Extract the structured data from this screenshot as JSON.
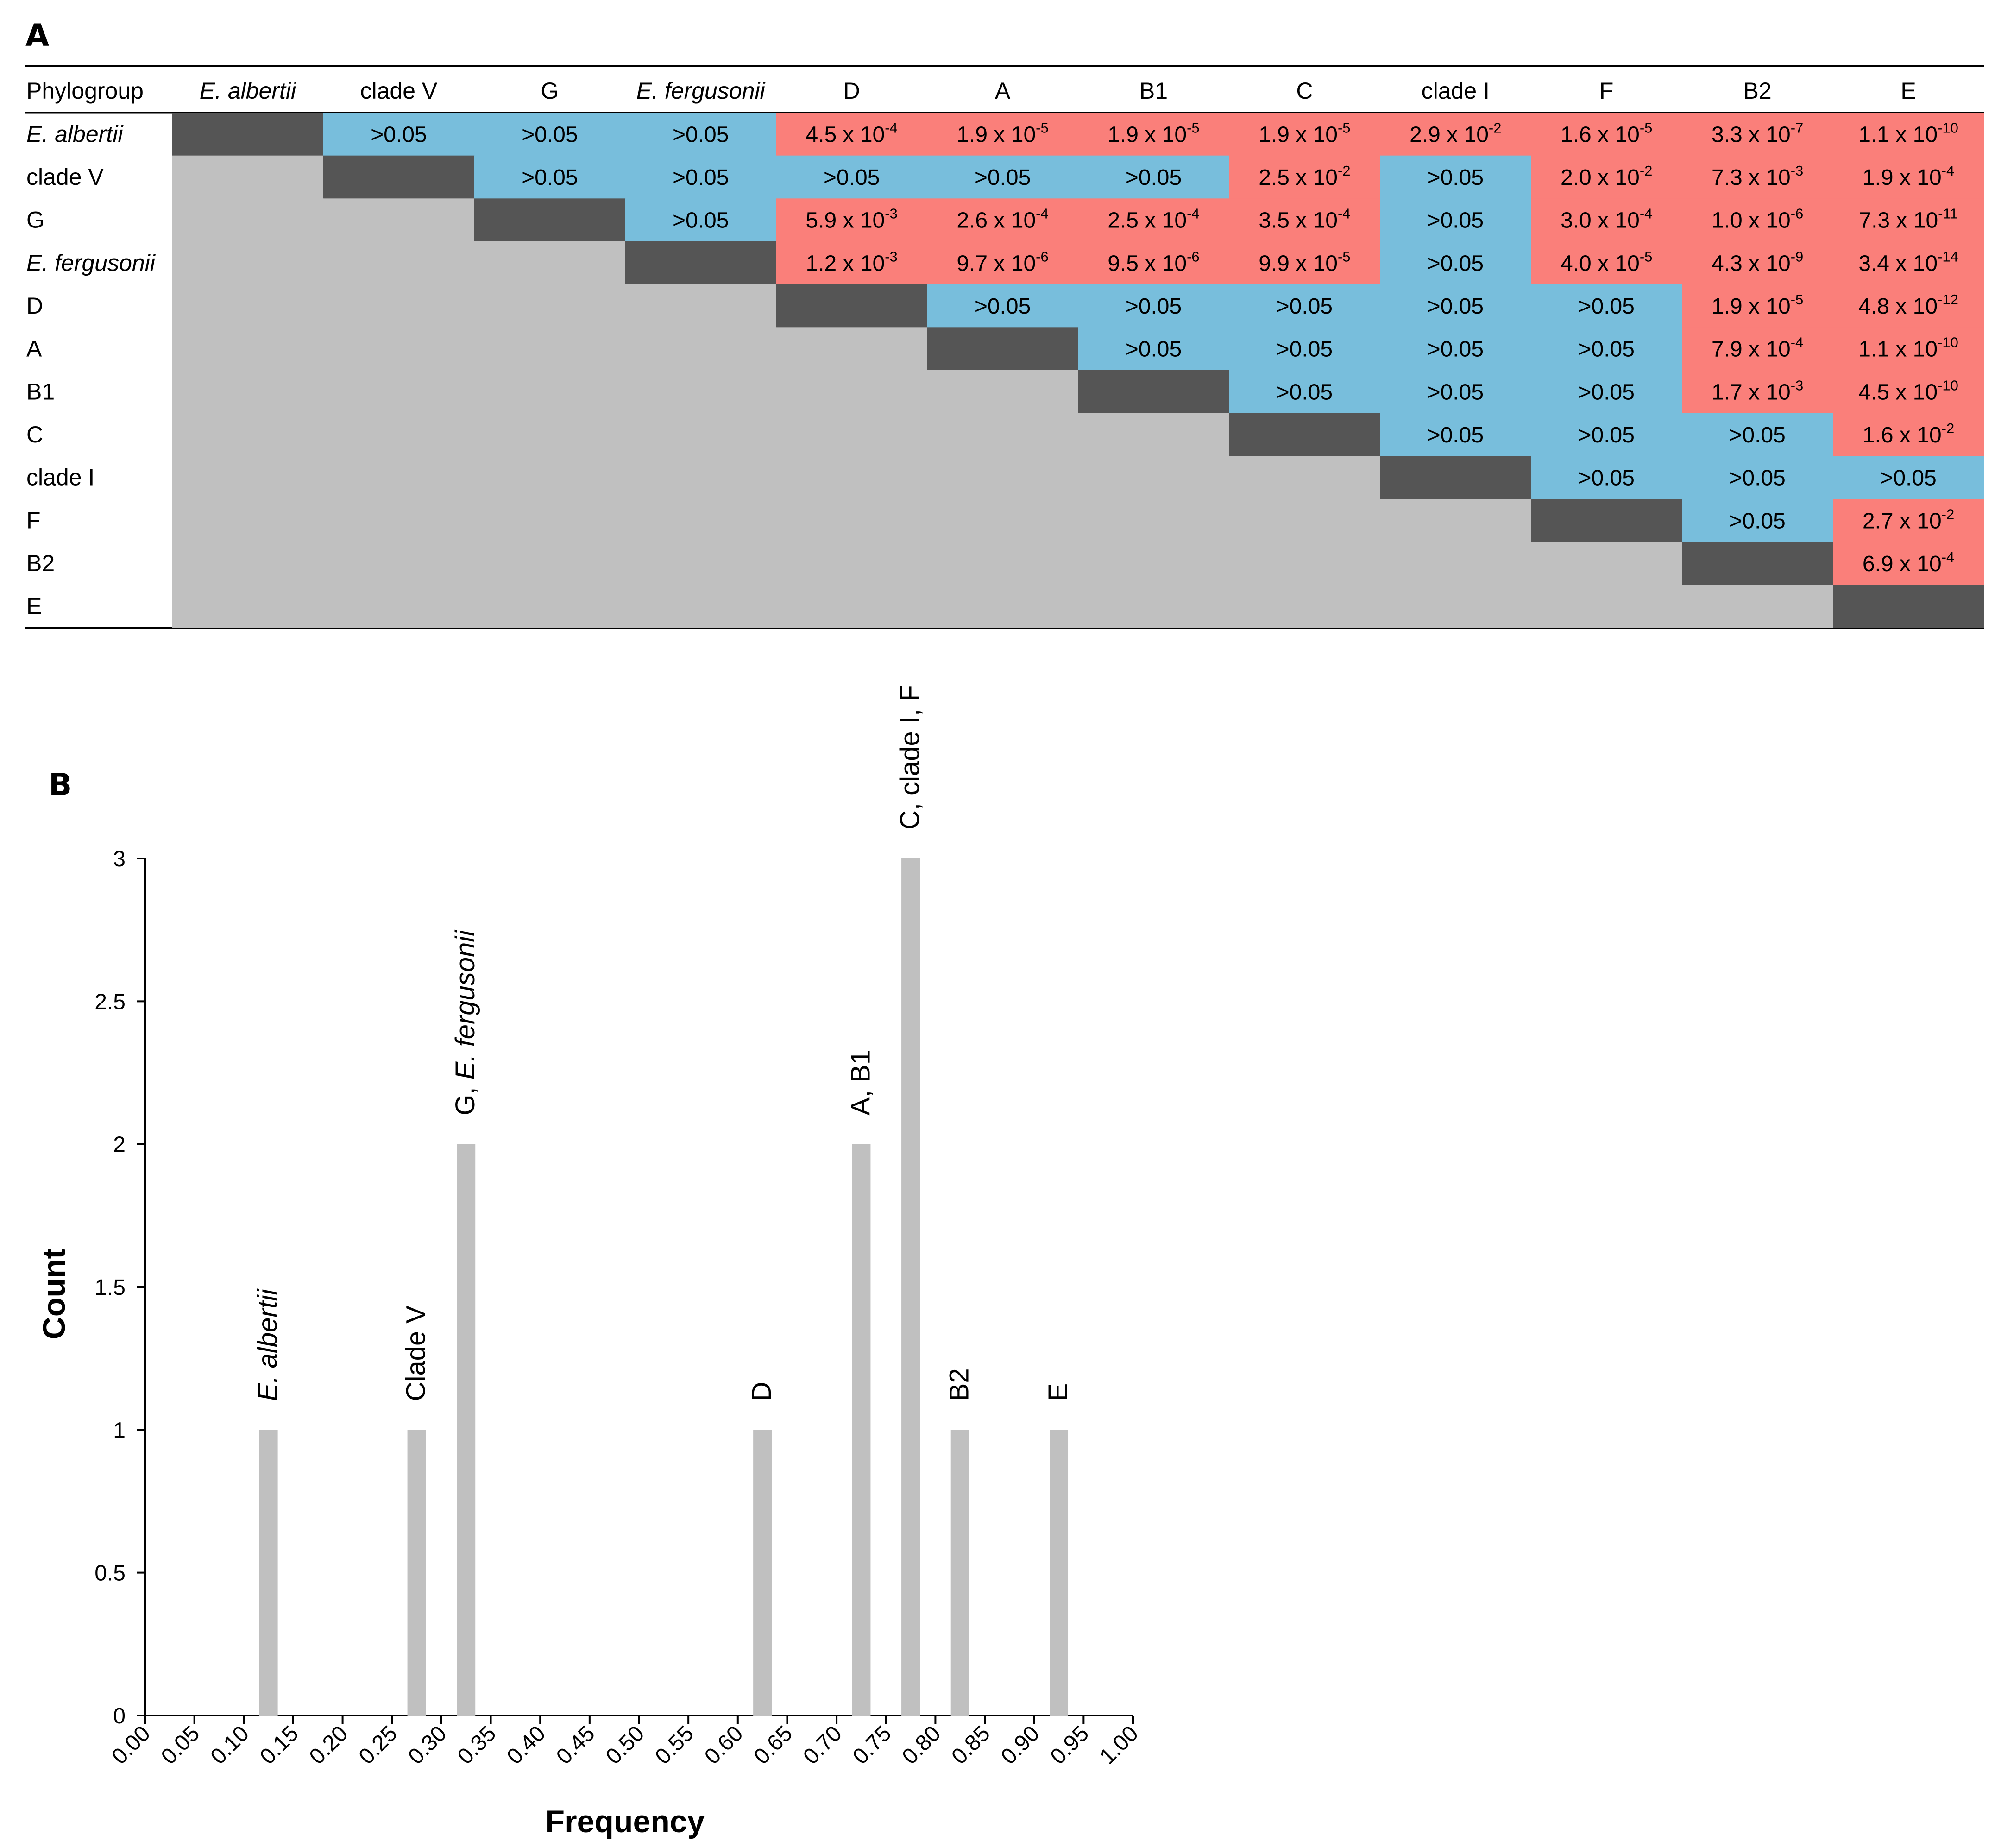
{
  "panel_a": {
    "label": "A",
    "corner_header": "Phylogroup",
    "groups": [
      {
        "name": "E. albertii",
        "italic": true
      },
      {
        "name": "clade V",
        "italic": false
      },
      {
        "name": "G",
        "italic": false
      },
      {
        "name": "E. fergusonii",
        "italic": true
      },
      {
        "name": "D",
        "italic": false
      },
      {
        "name": "A",
        "italic": false
      },
      {
        "name": "B1",
        "italic": false
      },
      {
        "name": "C",
        "italic": false
      },
      {
        "name": "clade I",
        "italic": false
      },
      {
        "name": "F",
        "italic": false
      },
      {
        "name": "B2",
        "italic": false
      },
      {
        "name": "E",
        "italic": false
      }
    ],
    "pvalues": [
      [
        ">0.05",
        ">0.05",
        ">0.05",
        "4.5 x 10^-4",
        "1.9 x 10^-5",
        "1.9 x 10^-5",
        "1.9 x 10^-5",
        "2.9 x 10^-2",
        "1.6 x 10^-5",
        "3.3 x 10^-7",
        "1.1 x 10^-10"
      ],
      [
        ">0.05",
        ">0.05",
        ">0.05",
        ">0.05",
        ">0.05",
        "2.5 x 10^-2",
        ">0.05",
        "2.0 x 10^-2",
        "7.3 x 10^-3",
        "1.9 x 10^-4"
      ],
      [
        ">0.05",
        "5.9 x 10^-3",
        "2.6 x 10^-4",
        "2.5 x 10^-4",
        "3.5 x 10^-4",
        ">0.05",
        "3.0 x 10^-4",
        "1.0 x 10^-6",
        "7.3 x 10^-11"
      ],
      [
        "1.2 x 10^-3",
        "9.7 x 10^-6",
        "9.5 x 10^-6",
        "9.9 x 10^-5",
        ">0.05",
        "4.0 x 10^-5",
        "4.3 x 10^-9",
        "3.4 x 10^-14"
      ],
      [
        ">0.05",
        ">0.05",
        ">0.05",
        ">0.05",
        ">0.05",
        "1.9 x 10^-5",
        "4.8 x 10^-12"
      ],
      [
        ">0.05",
        ">0.05",
        ">0.05",
        ">0.05",
        "7.9 x 10^-4",
        "1.1 x 10^-10"
      ],
      [
        ">0.05",
        ">0.05",
        ">0.05",
        "1.7 x 10^-3",
        "4.5 x 10^-10"
      ],
      [
        ">0.05",
        ">0.05",
        ">0.05",
        "1.6 x 10^-2"
      ],
      [
        ">0.05",
        ">0.05",
        ">0.05"
      ],
      [
        ">0.05",
        "2.7 x 10^-2"
      ],
      [
        "6.9 x 10^-4"
      ],
      []
    ],
    "colors": {
      "significant": "#fa7f7a",
      "not_significant": "#78bedc",
      "diagonal": "#555555",
      "lower_triangle": "#c0c0c0"
    }
  },
  "chart_data": {
    "type": "bar",
    "panel_label": "B",
    "xlabel": "Frequency",
    "ylabel": "Count",
    "xlim": [
      0,
      1
    ],
    "ylim": [
      0,
      3
    ],
    "x_ticks": [
      "0.00",
      "0.05",
      "0.10",
      "0.15",
      "0.20",
      "0.25",
      "0.30",
      "0.35",
      "0.40",
      "0.45",
      "0.50",
      "0.55",
      "0.60",
      "0.65",
      "0.70",
      "0.75",
      "0.80",
      "0.85",
      "0.90",
      "0.95",
      "1.00"
    ],
    "y_ticks": [
      "0",
      "0.5",
      "1",
      "1.5",
      "2",
      "2.5",
      "3"
    ],
    "bars": [
      {
        "x": 0.125,
        "count": 1,
        "label": "E. albertii"
      },
      {
        "x": 0.275,
        "count": 1,
        "label": "Clade V"
      },
      {
        "x": 0.325,
        "count": 2,
        "label": "G, E. fergusonii"
      },
      {
        "x": 0.625,
        "count": 1,
        "label": "D"
      },
      {
        "x": 0.725,
        "count": 2,
        "label": "A, B1"
      },
      {
        "x": 0.775,
        "count": 3,
        "label": "C, clade I, F"
      },
      {
        "x": 0.825,
        "count": 1,
        "label": "B2"
      },
      {
        "x": 0.925,
        "count": 1,
        "label": "E"
      }
    ],
    "bar_color": "#c0c0c0",
    "grid": false
  }
}
